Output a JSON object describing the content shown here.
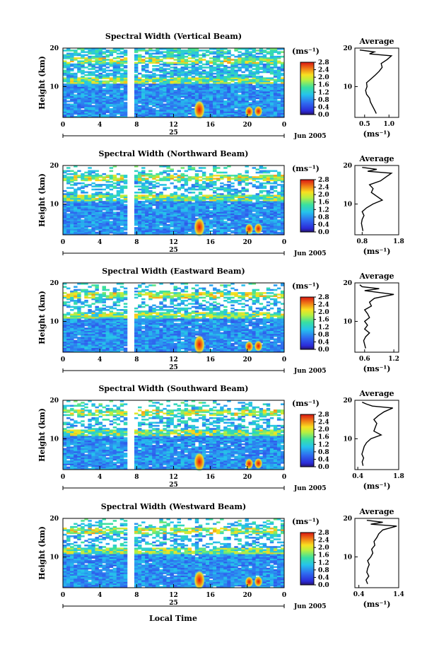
{
  "figure": {
    "xlabel": "Local Time",
    "date_label": "Jun 2005",
    "day_label": "25"
  },
  "chart_data": [
    {
      "type": "heatmap",
      "title": "Spectral Width (Vertical Beam)",
      "ylabel": "Height (km)",
      "xlabel": "Local Time",
      "x_ticks": [
        "0",
        "4",
        "8",
        "12",
        "16",
        "20",
        "0"
      ],
      "y_ticks": [
        "10",
        "20"
      ],
      "xlim": [
        0,
        24
      ],
      "ylim": [
        2,
        20
      ],
      "colorbar": {
        "unit": "(ms⁻¹)",
        "ticks": [
          "0.0",
          "0.4",
          "0.8",
          "1.2",
          "1.6",
          "2.0",
          "2.4",
          "2.8"
        ],
        "range": [
          0,
          2.8
        ]
      },
      "gap_time": 7.4,
      "hotspots": [
        [
          14.8,
          4.0
        ],
        [
          20.2,
          3.5
        ],
        [
          21.2,
          3.6
        ]
      ],
      "average": {
        "title": "Average",
        "xlabel": "(ms⁻¹)",
        "x_ticks": [
          "0.5",
          "1.0"
        ],
        "xlim": [
          0.3,
          1.2
        ],
        "y_ticks": [
          "10",
          "20"
        ],
        "profile": [
          [
            3,
            0.74
          ],
          [
            4,
            0.7
          ],
          [
            5,
            0.66
          ],
          [
            6,
            0.62
          ],
          [
            7,
            0.6
          ],
          [
            8,
            0.54
          ],
          [
            9,
            0.52
          ],
          [
            10,
            0.55
          ],
          [
            11,
            0.54
          ],
          [
            12,
            0.63
          ],
          [
            13,
            0.72
          ],
          [
            14,
            0.8
          ],
          [
            15,
            0.86
          ],
          [
            16,
            0.84
          ],
          [
            17,
            0.96
          ],
          [
            18,
            1.05
          ],
          [
            18.5,
            0.6
          ],
          [
            19,
            0.7
          ],
          [
            19.5,
            0.4
          ]
        ]
      }
    },
    {
      "type": "heatmap",
      "title": "Spectral Width (Northward Beam)",
      "ylabel": "Height (km)",
      "xlabel": "Local Time",
      "x_ticks": [
        "0",
        "4",
        "8",
        "12",
        "16",
        "20",
        "0"
      ],
      "y_ticks": [
        "10",
        "20"
      ],
      "xlim": [
        0,
        24
      ],
      "ylim": [
        2,
        20
      ],
      "colorbar": {
        "unit": "(ms⁻¹)",
        "ticks": [
          "0.0",
          "0.4",
          "0.8",
          "1.2",
          "1.6",
          "2.0",
          "2.4",
          "2.8"
        ],
        "range": [
          0,
          2.8
        ]
      },
      "gap_time": 7.4,
      "hotspots": [
        [
          14.8,
          4.0
        ],
        [
          20.2,
          3.5
        ],
        [
          21.2,
          3.6
        ]
      ],
      "average": {
        "title": "Average",
        "xlabel": "(ms⁻¹)",
        "x_ticks": [
          "0.8",
          "1.8"
        ],
        "xlim": [
          0.6,
          1.8
        ],
        "y_ticks": [
          "10",
          "20"
        ],
        "profile": [
          [
            3,
            0.82
          ],
          [
            4,
            0.8
          ],
          [
            5,
            0.78
          ],
          [
            6,
            0.8
          ],
          [
            7,
            0.85
          ],
          [
            8,
            0.8
          ],
          [
            9,
            0.92
          ],
          [
            10,
            1.1
          ],
          [
            11,
            1.35
          ],
          [
            12,
            1.2
          ],
          [
            13,
            1.05
          ],
          [
            14,
            1.1
          ],
          [
            15,
            1.0
          ],
          [
            16,
            1.3
          ],
          [
            17,
            1.45
          ],
          [
            18,
            1.6
          ],
          [
            18.5,
            0.95
          ],
          [
            19,
            1.2
          ],
          [
            19.5,
            0.8
          ]
        ]
      }
    },
    {
      "type": "heatmap",
      "title": "Spectral Width (Eastward Beam)",
      "ylabel": "Height (km)",
      "xlabel": "Local Time",
      "x_ticks": [
        "0",
        "4",
        "8",
        "12",
        "16",
        "20",
        "0"
      ],
      "y_ticks": [
        "10",
        "20"
      ],
      "xlim": [
        0,
        24
      ],
      "ylim": [
        2,
        20
      ],
      "colorbar": {
        "unit": "(ms⁻¹)",
        "ticks": [
          "0.0",
          "0.4",
          "0.8",
          "1.2",
          "1.6",
          "2.0",
          "2.4",
          "2.8"
        ],
        "range": [
          0,
          2.8
        ]
      },
      "gap_time": 7.4,
      "hotspots": [
        [
          14.8,
          4.0
        ],
        [
          20.2,
          3.5
        ],
        [
          21.2,
          3.6
        ]
      ],
      "average": {
        "title": "Average",
        "xlabel": "(ms⁻¹)",
        "x_ticks": [
          "0.6",
          "1.2"
        ],
        "xlim": [
          0.4,
          1.3
        ],
        "y_ticks": [
          "10",
          "20"
        ],
        "profile": [
          [
            3,
            0.62
          ],
          [
            4,
            0.6
          ],
          [
            5,
            0.58
          ],
          [
            6,
            0.62
          ],
          [
            7,
            0.7
          ],
          [
            8,
            0.6
          ],
          [
            9,
            0.66
          ],
          [
            10,
            0.6
          ],
          [
            11,
            0.7
          ],
          [
            12,
            0.66
          ],
          [
            13,
            0.6
          ],
          [
            14,
            0.74
          ],
          [
            15,
            0.7
          ],
          [
            16,
            0.8
          ],
          [
            17,
            1.2
          ],
          [
            18,
            0.6
          ],
          [
            18.5,
            0.9
          ],
          [
            19,
            0.55
          ],
          [
            19.5,
            0.5
          ]
        ]
      }
    },
    {
      "type": "heatmap",
      "title": "Spectral Width (Southward Beam)",
      "ylabel": "Height (km)",
      "xlabel": "Local Time",
      "x_ticks": [
        "0",
        "4",
        "8",
        "12",
        "16",
        "20",
        "0"
      ],
      "y_ticks": [
        "10",
        "20"
      ],
      "xlim": [
        0,
        24
      ],
      "ylim": [
        2,
        20
      ],
      "colorbar": {
        "unit": "(ms⁻¹)",
        "ticks": [
          "0.0",
          "0.4",
          "0.8",
          "1.2",
          "1.6",
          "2.0",
          "2.4",
          "2.8"
        ],
        "range": [
          0,
          2.8
        ]
      },
      "gap_time": 7.4,
      "hotspots": [
        [
          14.8,
          4.0
        ],
        [
          20.2,
          3.5
        ],
        [
          21.2,
          3.6
        ]
      ],
      "average": {
        "title": "Average",
        "xlabel": "(ms⁻¹)",
        "x_ticks": [
          "0.4",
          "1.8"
        ],
        "xlim": [
          0.3,
          1.8
        ],
        "y_ticks": [
          "10",
          "20"
        ],
        "profile": [
          [
            3,
            0.58
          ],
          [
            4,
            0.55
          ],
          [
            5,
            0.6
          ],
          [
            6,
            0.54
          ],
          [
            7,
            0.58
          ],
          [
            8,
            0.62
          ],
          [
            9,
            0.7
          ],
          [
            10,
            0.85
          ],
          [
            11,
            1.2
          ],
          [
            12,
            0.95
          ],
          [
            13,
            1.0
          ],
          [
            14,
            1.05
          ],
          [
            15,
            0.95
          ],
          [
            16,
            1.1
          ],
          [
            17,
            1.3
          ],
          [
            18,
            1.6
          ],
          [
            18.5,
            0.9
          ],
          [
            19,
            0.7
          ],
          [
            19.5,
            0.55
          ]
        ]
      }
    },
    {
      "type": "heatmap",
      "title": "Spectral Width (Westward Beam)",
      "ylabel": "Height (km)",
      "xlabel": "Local Time",
      "x_ticks": [
        "0",
        "4",
        "8",
        "12",
        "16",
        "20",
        "0"
      ],
      "y_ticks": [
        "10",
        "20"
      ],
      "xlim": [
        0,
        24
      ],
      "ylim": [
        2,
        20
      ],
      "colorbar": {
        "unit": "(ms⁻¹)",
        "ticks": [
          "0.0",
          "0.4",
          "0.8",
          "1.2",
          "1.6",
          "2.0",
          "2.4",
          "2.8"
        ],
        "range": [
          0,
          2.8
        ]
      },
      "gap_time": 7.4,
      "hotspots": [
        [
          14.8,
          4.0
        ],
        [
          20.2,
          3.5
        ],
        [
          21.2,
          3.6
        ]
      ],
      "average": {
        "title": "Average",
        "xlabel": "(ms⁻¹)",
        "x_ticks": [
          "0.4",
          "1.4"
        ],
        "xlim": [
          0.3,
          1.4
        ],
        "y_ticks": [
          "10",
          "20"
        ],
        "profile": [
          [
            3,
            0.62
          ],
          [
            4,
            0.58
          ],
          [
            5,
            0.65
          ],
          [
            6,
            0.6
          ],
          [
            7,
            0.62
          ],
          [
            8,
            0.66
          ],
          [
            9,
            0.62
          ],
          [
            10,
            0.7
          ],
          [
            11,
            0.75
          ],
          [
            12,
            0.72
          ],
          [
            13,
            0.8
          ],
          [
            14,
            0.78
          ],
          [
            15,
            0.85
          ],
          [
            16,
            0.9
          ],
          [
            17,
            1.0
          ],
          [
            18,
            1.35
          ],
          [
            18.5,
            0.7
          ],
          [
            19,
            1.0
          ],
          [
            19.5,
            0.6
          ]
        ]
      }
    }
  ]
}
